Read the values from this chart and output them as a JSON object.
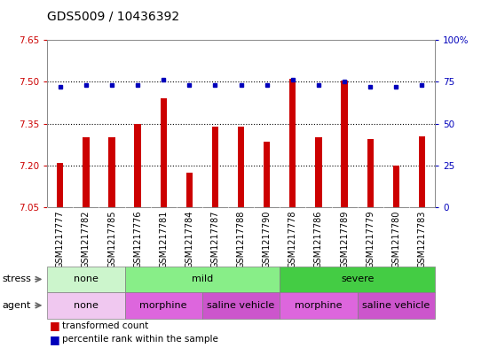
{
  "title": "GDS5009 / 10436392",
  "samples": [
    "GSM1217777",
    "GSM1217782",
    "GSM1217785",
    "GSM1217776",
    "GSM1217781",
    "GSM1217784",
    "GSM1217787",
    "GSM1217788",
    "GSM1217790",
    "GSM1217778",
    "GSM1217786",
    "GSM1217789",
    "GSM1217779",
    "GSM1217780",
    "GSM1217783"
  ],
  "red_values": [
    7.21,
    7.3,
    7.3,
    7.35,
    7.44,
    7.175,
    7.34,
    7.34,
    7.285,
    7.51,
    7.3,
    7.505,
    7.295,
    7.2,
    7.305
  ],
  "blue_values": [
    72,
    73,
    73,
    73,
    76,
    73,
    73,
    73,
    73,
    76,
    73,
    75,
    72,
    72,
    73
  ],
  "ymin": 7.05,
  "ymax": 7.65,
  "y_ticks_left": [
    7.05,
    7.2,
    7.35,
    7.5,
    7.65
  ],
  "y_ticks_right": [
    0,
    25,
    50,
    75,
    100
  ],
  "y_ticks_right_labels": [
    "0",
    "25",
    "50",
    "75",
    "100%"
  ],
  "stress_groups": [
    {
      "label": "none",
      "start": 0,
      "end": 3,
      "color": "#ccf5cc"
    },
    {
      "label": "mild",
      "start": 3,
      "end": 9,
      "color": "#88ee88"
    },
    {
      "label": "severe",
      "start": 9,
      "end": 15,
      "color": "#44cc44"
    }
  ],
  "agent_groups": [
    {
      "label": "none",
      "start": 0,
      "end": 3,
      "color": "#f0c8f0"
    },
    {
      "label": "morphine",
      "start": 3,
      "end": 6,
      "color": "#dd66dd"
    },
    {
      "label": "saline vehicle",
      "start": 6,
      "end": 9,
      "color": "#cc55cc"
    },
    {
      "label": "morphine",
      "start": 9,
      "end": 12,
      "color": "#dd66dd"
    },
    {
      "label": "saline vehicle",
      "start": 12,
      "end": 15,
      "color": "#cc55cc"
    }
  ],
  "bar_color": "#cc0000",
  "dot_color": "#0000bb",
  "bar_width": 0.25,
  "dot_size": 3,
  "sample_bg": "#d8d8d8",
  "plot_bg": "#ffffff",
  "grid_color": "#000000",
  "border_color": "#888888",
  "left_tick_color": "#cc0000",
  "right_tick_color": "#0000bb",
  "legend_red": "transformed count",
  "legend_blue": "percentile rank within the sample",
  "stress_label": "stress",
  "agent_label": "agent",
  "title_fontsize": 10,
  "tick_fontsize": 7.5,
  "label_fontsize": 8,
  "row_fontsize": 8
}
